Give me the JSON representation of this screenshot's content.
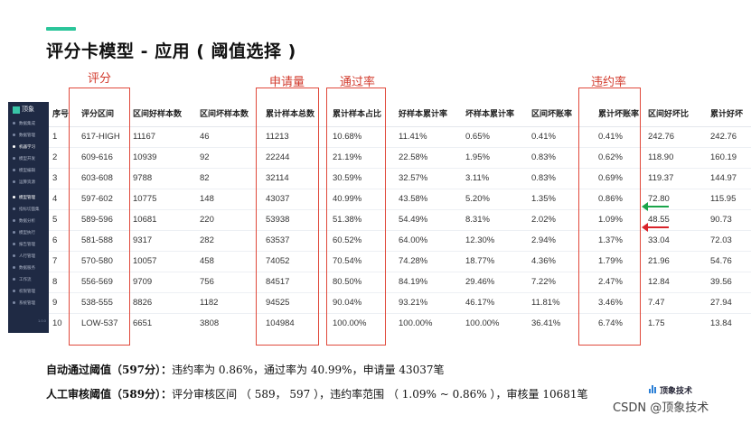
{
  "title": "评分卡模型 - 应用 ( 阈值选择 )",
  "annotations": {
    "score": "评分",
    "applications": "申请量",
    "pass_rate": "通过率",
    "default_rate": "违约率"
  },
  "sidebar": {
    "logo_text": "顶象",
    "version": "1.0.0",
    "items": [
      {
        "label": "数据集成",
        "active": false
      },
      {
        "label": "数据管理",
        "active": false
      },
      {
        "label": "机器学习",
        "active": true
      },
      {
        "label": "模型开发",
        "active": false
      },
      {
        "label": "模型编辑",
        "active": false
      },
      {
        "label": "运算资源",
        "active": false
      },
      {
        "label": "模型管理",
        "active": true
      },
      {
        "label": "指标切面集",
        "active": false
      },
      {
        "label": "数据分析",
        "active": false
      },
      {
        "label": "模型执行",
        "active": false
      },
      {
        "label": "报告管理",
        "active": false
      },
      {
        "label": "人行管理",
        "active": false
      },
      {
        "label": "数据服务",
        "active": false
      },
      {
        "label": "工作流",
        "active": false
      },
      {
        "label": "权限管理",
        "active": false
      },
      {
        "label": "系统管理",
        "active": false
      }
    ]
  },
  "table": {
    "headers": [
      "序号",
      "评分区间",
      "区间好样本数",
      "区间坏样本数",
      "累计样本总数",
      "累计样本占比",
      "好样本累计率",
      "坏样本累计率",
      "区间坏账率",
      "累计坏账率",
      "区间好坏比",
      "累计好坏"
    ],
    "rows": [
      [
        "1",
        "617-HIGH",
        "11167",
        "46",
        "11213",
        "10.68%",
        "11.41%",
        "0.65%",
        "0.41%",
        "0.41%",
        "242.76",
        "242.76"
      ],
      [
        "2",
        "609-616",
        "10939",
        "92",
        "22244",
        "21.19%",
        "22.58%",
        "1.95%",
        "0.83%",
        "0.62%",
        "118.90",
        "160.19"
      ],
      [
        "3",
        "603-608",
        "9788",
        "82",
        "32114",
        "30.59%",
        "32.57%",
        "3.11%",
        "0.83%",
        "0.69%",
        "119.37",
        "144.97"
      ],
      [
        "4",
        "597-602",
        "10775",
        "148",
        "43037",
        "40.99%",
        "43.58%",
        "5.20%",
        "1.35%",
        "0.86%",
        "72.80",
        "115.95"
      ],
      [
        "5",
        "589-596",
        "10681",
        "220",
        "53938",
        "51.38%",
        "54.49%",
        "8.31%",
        "2.02%",
        "1.09%",
        "48.55",
        "90.73"
      ],
      [
        "6",
        "581-588",
        "9317",
        "282",
        "63537",
        "60.52%",
        "64.00%",
        "12.30%",
        "2.94%",
        "1.37%",
        "33.04",
        "72.03"
      ],
      [
        "7",
        "570-580",
        "10057",
        "458",
        "74052",
        "70.54%",
        "74.28%",
        "18.77%",
        "4.36%",
        "1.79%",
        "21.96",
        "54.76"
      ],
      [
        "8",
        "556-569",
        "9709",
        "756",
        "84517",
        "80.50%",
        "84.19%",
        "29.46%",
        "7.22%",
        "2.47%",
        "12.84",
        "39.56"
      ],
      [
        "9",
        "538-555",
        "8826",
        "1182",
        "94525",
        "90.04%",
        "93.21%",
        "46.17%",
        "11.81%",
        "3.46%",
        "7.47",
        "27.94"
      ],
      [
        "10",
        "LOW-537",
        "6651",
        "3808",
        "104984",
        "100.00%",
        "100.00%",
        "100.00%",
        "36.41%",
        "6.74%",
        "1.75",
        "13.84"
      ]
    ]
  },
  "notes": {
    "auto_label": "自动通过阈值（597分）：",
    "auto_text": "违约率为 0.86%，通过率为 40.99%，申请量 43037笔",
    "manual_label": "人工审核阈值（589分）：",
    "manual_text": "评分审核区间 （ 589， 597 ），违约率范围 （ 1.09% ~ 0.86% ），审核量 10681笔"
  },
  "brand": "顶象技术",
  "watermark": "CSDN @顶象技术",
  "colors": {
    "accent": "#2bc59a",
    "highlight": "#e0493b",
    "sidebar": "#1f2a44",
    "arrow_green": "#1aa54a",
    "arrow_red": "#d8232a"
  }
}
